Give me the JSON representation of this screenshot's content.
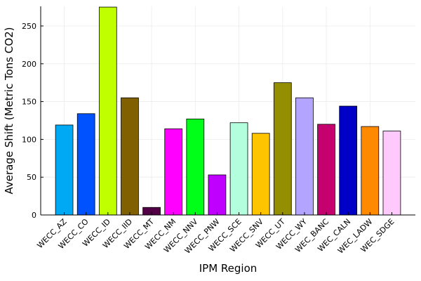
{
  "chart_data": {
    "type": "bar",
    "title": "",
    "xlabel": "IPM Region",
    "ylabel": "Average Shift (Metric Tons CO2)",
    "ylim": [
      0,
      276
    ],
    "yticks": [
      0,
      50,
      100,
      150,
      200,
      250
    ],
    "grid": true,
    "legend": "none",
    "categories": [
      "WECC_AZ",
      "WECC_CO",
      "WECC_ID",
      "WECC_IID",
      "WECC_MT",
      "WECC_NM",
      "WECC_NNV",
      "WECC_PNW",
      "WECC_SCE",
      "WECC_SNV",
      "WECC_UT",
      "WECC_WY",
      "WEC_BANC",
      "WEC_CALN",
      "WEC_LADW",
      "WEC_SDGE"
    ],
    "values": [
      119,
      134,
      275,
      155,
      10,
      114,
      127,
      53,
      122,
      108,
      175,
      155,
      120,
      144,
      117,
      111
    ],
    "colors": [
      "#00a9f3",
      "#0052ff",
      "#bfff00",
      "#806000",
      "#520045",
      "#ff00ff",
      "#00ff18",
      "#bf00ff",
      "#b3ffdd",
      "#ffc400",
      "#948f00",
      "#b3a4ff",
      "#c5006f",
      "#0000c7",
      "#ff8a00",
      "#ffc9fb"
    ]
  }
}
